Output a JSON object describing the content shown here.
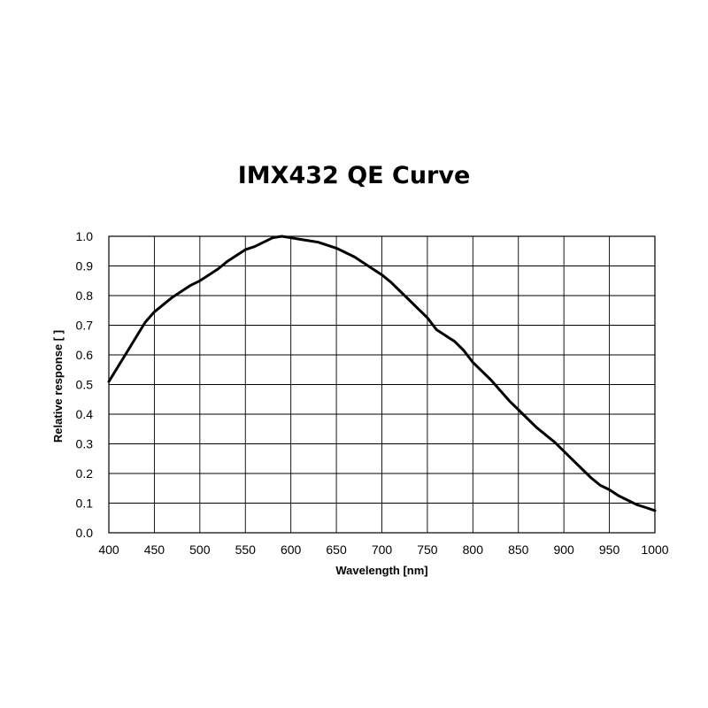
{
  "chart_data": {
    "type": "line",
    "title": "IMX432 QE Curve",
    "xlabel": "Wavelength [nm]",
    "ylabel": "Relative response [ ]",
    "xlim": [
      400,
      1000
    ],
    "ylim": [
      0.0,
      1.0
    ],
    "x_ticks": [
      400,
      450,
      500,
      550,
      600,
      650,
      700,
      750,
      800,
      850,
      900,
      950,
      1000
    ],
    "y_ticks": [
      "0.0",
      "0.1",
      "0.2",
      "0.3",
      "0.4",
      "0.5",
      "0.6",
      "0.7",
      "0.8",
      "0.9",
      "1.0"
    ],
    "grid": true,
    "series": [
      {
        "color": "#000000",
        "x": [
          400,
          410,
          420,
          430,
          440,
          450,
          460,
          470,
          480,
          490,
          500,
          510,
          520,
          530,
          540,
          550,
          560,
          570,
          580,
          590,
          600,
          610,
          620,
          630,
          640,
          650,
          660,
          670,
          680,
          690,
          700,
          710,
          720,
          730,
          740,
          750,
          760,
          770,
          780,
          790,
          800,
          810,
          820,
          830,
          840,
          850,
          860,
          870,
          880,
          890,
          900,
          910,
          920,
          930,
          940,
          950,
          960,
          970,
          980,
          990,
          1000
        ],
        "y": [
          0.51,
          0.56,
          0.61,
          0.66,
          0.71,
          0.745,
          0.77,
          0.795,
          0.815,
          0.835,
          0.85,
          0.87,
          0.89,
          0.915,
          0.935,
          0.955,
          0.965,
          0.98,
          0.995,
          1.0,
          0.995,
          0.99,
          0.985,
          0.98,
          0.97,
          0.96,
          0.945,
          0.93,
          0.91,
          0.89,
          0.87,
          0.845,
          0.815,
          0.785,
          0.755,
          0.725,
          0.685,
          0.665,
          0.645,
          0.615,
          0.575,
          0.545,
          0.515,
          0.48,
          0.445,
          0.415,
          0.385,
          0.355,
          0.33,
          0.305,
          0.275,
          0.245,
          0.215,
          0.185,
          0.16,
          0.145,
          0.125,
          0.11,
          0.095,
          0.085,
          0.075
        ]
      }
    ]
  }
}
